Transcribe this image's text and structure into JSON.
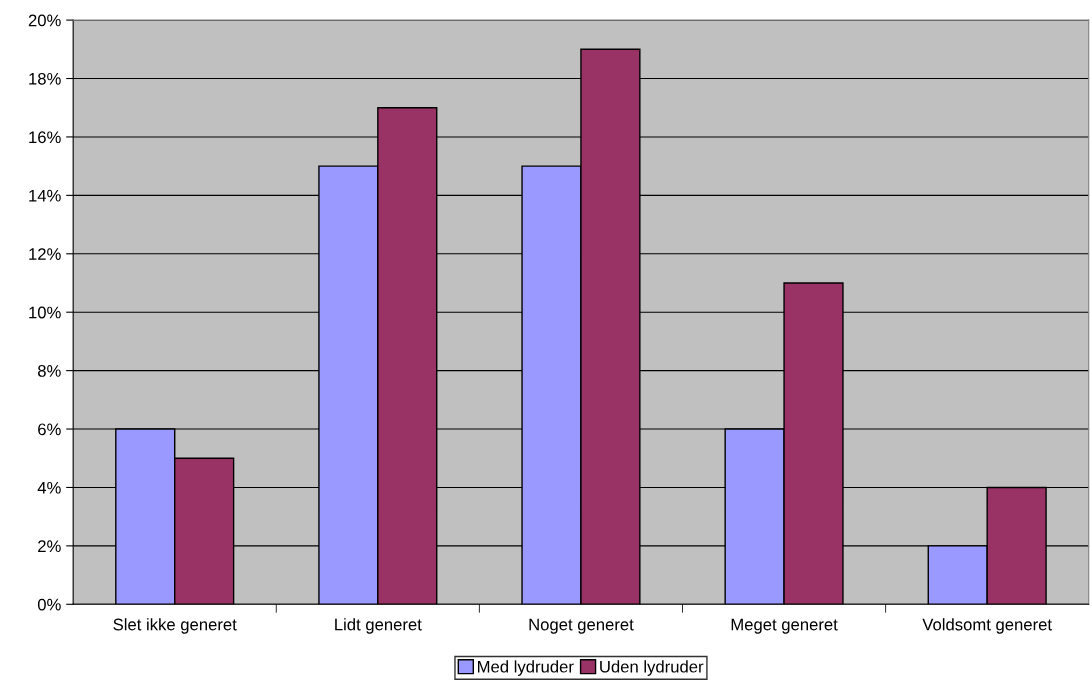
{
  "chart_data": {
    "type": "bar",
    "categories": [
      "Slet ikke generet",
      "Lidt generet",
      "Noget generet",
      "Meget generet",
      "Voldsomt generet"
    ],
    "series": [
      {
        "name": "Med lydruder",
        "color": "#9999ff",
        "values": [
          6,
          15,
          15,
          6,
          2
        ]
      },
      {
        "name": "Uden lydruder",
        "color": "#993366",
        "values": [
          5,
          17,
          19,
          11,
          4
        ]
      }
    ],
    "ylim": [
      0,
      20
    ],
    "yticks": [
      {
        "value": 0,
        "label": "0%"
      },
      {
        "value": 2,
        "label": "2%"
      },
      {
        "value": 4,
        "label": "4%"
      },
      {
        "value": 6,
        "label": "6%"
      },
      {
        "value": 8,
        "label": "8%"
      },
      {
        "value": 10,
        "label": "10%"
      },
      {
        "value": 12,
        "label": "12%"
      },
      {
        "value": 14,
        "label": "14%"
      },
      {
        "value": 16,
        "label": "16%"
      },
      {
        "value": 18,
        "label": "18%"
      },
      {
        "value": 20,
        "label": "20%"
      }
    ],
    "grid": "y",
    "legend": "bottom"
  }
}
